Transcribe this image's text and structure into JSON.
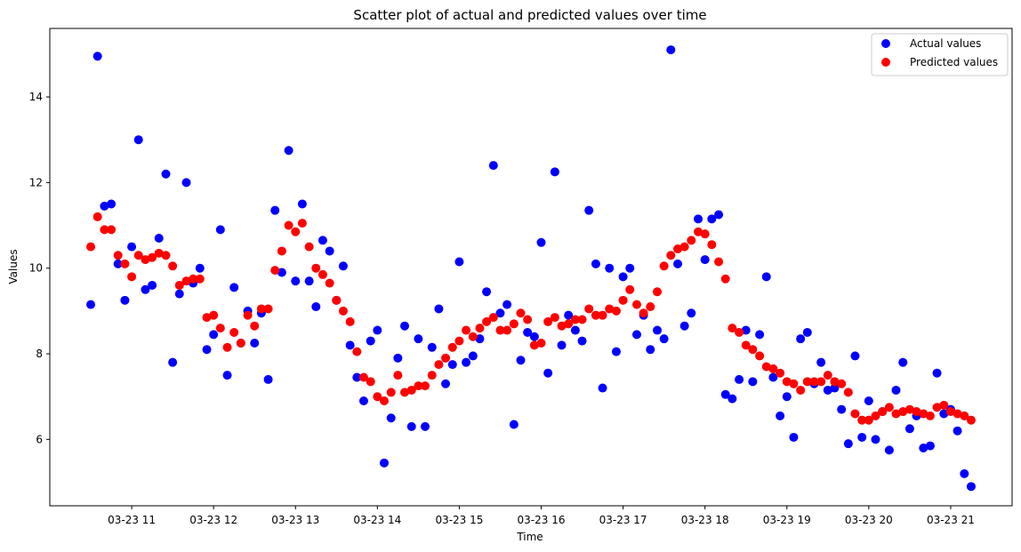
{
  "chart_data": {
    "type": "scatter",
    "title": "Scatter plot of actual and predicted values over time",
    "xlabel": "Time",
    "ylabel": "Values",
    "x_tick_labels": [
      "03-23 11",
      "03-23 12",
      "03-23 13",
      "03-23 14",
      "03-23 15",
      "03-23 16",
      "03-23 17",
      "03-23 18",
      "03-23 19",
      "03-23 20",
      "03-23 21"
    ],
    "x_tick_hours": [
      11,
      12,
      13,
      14,
      15,
      16,
      17,
      18,
      19,
      20,
      21
    ],
    "x_range_hours": [
      10.0,
      21.75
    ],
    "y_ticks": [
      6,
      8,
      10,
      12,
      14
    ],
    "ylim": [
      4.45,
      15.6
    ],
    "grid": false,
    "legend_position": "top-right",
    "series": [
      {
        "name": "Actual values",
        "color": "#0000ff",
        "x_hours": [
          10.5,
          10.583,
          10.667,
          10.75,
          10.833,
          10.917,
          11.0,
          11.083,
          11.167,
          11.25,
          11.333,
          11.417,
          11.5,
          11.583,
          11.667,
          11.75,
          11.833,
          11.917,
          12.0,
          12.083,
          12.167,
          12.25,
          12.333,
          12.417,
          12.5,
          12.583,
          12.667,
          12.75,
          12.833,
          12.917,
          13.0,
          13.083,
          13.167,
          13.25,
          13.333,
          13.417,
          13.5,
          13.583,
          13.667,
          13.75,
          13.833,
          13.917,
          14.0,
          14.083,
          14.167,
          14.25,
          14.333,
          14.417,
          14.5,
          14.583,
          14.667,
          14.75,
          14.833,
          14.917,
          15.0,
          15.083,
          15.167,
          15.25,
          15.333,
          15.417,
          15.5,
          15.583,
          15.667,
          15.75,
          15.833,
          15.917,
          16.0,
          16.083,
          16.167,
          16.25,
          16.333,
          16.417,
          16.5,
          16.583,
          16.667,
          16.75,
          16.833,
          16.917,
          17.0,
          17.083,
          17.167,
          17.25,
          17.333,
          17.417,
          17.5,
          17.583,
          17.667,
          17.75,
          17.833,
          17.917,
          18.0,
          18.083,
          18.167,
          18.25,
          18.333,
          18.417,
          18.5,
          18.583,
          18.667,
          18.75,
          18.833,
          18.917,
          19.0,
          19.083,
          19.167,
          19.25,
          19.333,
          19.417,
          19.5,
          19.583,
          19.667,
          19.75,
          19.833,
          19.917,
          20.0,
          20.083,
          20.167,
          20.25,
          20.333,
          20.417,
          20.5,
          20.583,
          20.667,
          20.75,
          20.833,
          20.917,
          21.0,
          21.083,
          21.167,
          21.25
        ],
        "values": [
          9.15,
          14.95,
          11.45,
          11.5,
          10.1,
          9.25,
          10.5,
          13.0,
          9.5,
          9.6,
          10.7,
          12.2,
          7.8,
          9.4,
          12.0,
          9.65,
          10.0,
          8.1,
          8.45,
          10.9,
          7.5,
          9.55,
          8.25,
          9.0,
          8.25,
          8.95,
          7.4,
          11.35,
          9.9,
          12.75,
          9.7,
          11.5,
          9.7,
          9.1,
          10.65,
          10.4,
          9.25,
          10.05,
          8.2,
          7.45,
          6.9,
          8.3,
          8.55,
          5.45,
          6.5,
          7.9,
          8.65,
          6.3,
          8.35,
          6.3,
          8.15,
          9.05,
          7.3,
          7.75,
          10.15,
          7.8,
          7.95,
          8.35,
          9.45,
          12.4,
          8.95,
          9.15,
          6.35,
          7.85,
          8.5,
          8.4,
          10.6,
          7.55,
          12.25,
          8.2,
          8.9,
          8.55,
          8.3,
          11.35,
          10.1,
          7.2,
          10.0,
          8.05,
          9.8,
          10.0,
          8.45,
          8.9,
          8.1,
          8.55,
          8.35,
          15.1,
          10.1,
          8.65,
          8.95,
          11.15,
          10.2,
          11.15,
          11.25,
          7.05,
          6.95,
          7.4,
          8.55,
          7.35,
          8.45,
          9.8,
          7.45,
          6.55,
          7.0,
          6.05,
          8.35,
          8.5,
          7.3,
          7.8,
          7.15,
          7.2,
          6.7,
          5.9,
          7.95,
          6.05,
          6.9,
          6.0,
          6.65,
          5.75,
          7.15,
          7.8,
          6.25,
          6.55,
          5.8,
          5.85,
          7.55,
          6.6,
          6.7,
          6.2,
          5.2,
          4.9
        ]
      },
      {
        "name": "Predicted values",
        "color": "#ff0000",
        "x_hours": [
          10.5,
          10.583,
          10.667,
          10.75,
          10.833,
          10.917,
          11.0,
          11.083,
          11.167,
          11.25,
          11.333,
          11.417,
          11.5,
          11.583,
          11.667,
          11.75,
          11.833,
          11.917,
          12.0,
          12.083,
          12.167,
          12.25,
          12.333,
          12.417,
          12.5,
          12.583,
          12.667,
          12.75,
          12.833,
          12.917,
          13.0,
          13.083,
          13.167,
          13.25,
          13.333,
          13.417,
          13.5,
          13.583,
          13.667,
          13.75,
          13.833,
          13.917,
          14.0,
          14.083,
          14.167,
          14.25,
          14.333,
          14.417,
          14.5,
          14.583,
          14.667,
          14.75,
          14.833,
          14.917,
          15.0,
          15.083,
          15.167,
          15.25,
          15.333,
          15.417,
          15.5,
          15.583,
          15.667,
          15.75,
          15.833,
          15.917,
          16.0,
          16.083,
          16.167,
          16.25,
          16.333,
          16.417,
          16.5,
          16.583,
          16.667,
          16.75,
          16.833,
          16.917,
          17.0,
          17.083,
          17.167,
          17.25,
          17.333,
          17.417,
          17.5,
          17.583,
          17.667,
          17.75,
          17.833,
          17.917,
          18.0,
          18.083,
          18.167,
          18.25,
          18.333,
          18.417,
          18.5,
          18.583,
          18.667,
          18.75,
          18.833,
          18.917,
          19.0,
          19.083,
          19.167,
          19.25,
          19.333,
          19.417,
          19.5,
          19.583,
          19.667,
          19.75,
          19.833,
          19.917,
          20.0,
          20.083,
          20.167,
          20.25,
          20.333,
          20.417,
          20.5,
          20.583,
          20.667,
          20.75,
          20.833,
          20.917,
          21.0,
          21.083,
          21.167,
          21.25
        ],
        "values": [
          10.5,
          11.2,
          10.9,
          10.9,
          10.3,
          10.1,
          9.8,
          10.3,
          10.2,
          10.25,
          10.35,
          10.3,
          10.05,
          9.6,
          9.7,
          9.75,
          9.75,
          8.85,
          8.9,
          8.6,
          8.15,
          8.5,
          8.25,
          8.9,
          8.65,
          9.05,
          9.05,
          9.95,
          10.4,
          11.0,
          10.85,
          11.05,
          10.5,
          10.0,
          9.85,
          9.65,
          9.25,
          9.0,
          8.75,
          8.05,
          7.45,
          7.35,
          7.0,
          6.9,
          7.1,
          7.5,
          7.1,
          7.15,
          7.25,
          7.25,
          7.5,
          7.75,
          7.9,
          8.15,
          8.3,
          8.55,
          8.4,
          8.6,
          8.75,
          8.85,
          8.55,
          8.55,
          8.7,
          8.95,
          8.8,
          8.2,
          8.25,
          8.75,
          8.85,
          8.65,
          8.7,
          8.8,
          8.8,
          9.05,
          8.9,
          8.9,
          9.05,
          9.0,
          9.25,
          9.5,
          9.15,
          8.95,
          9.1,
          9.45,
          10.05,
          10.3,
          10.45,
          10.5,
          10.65,
          10.85,
          10.8,
          10.55,
          10.15,
          9.75,
          8.6,
          8.5,
          8.2,
          8.1,
          7.95,
          7.7,
          7.65,
          7.55,
          7.35,
          7.3,
          7.15,
          7.35,
          7.35,
          7.35,
          7.5,
          7.35,
          7.3,
          7.1,
          6.6,
          6.45,
          6.45,
          6.55,
          6.65,
          6.75,
          6.6,
          6.65,
          6.7,
          6.65,
          6.6,
          6.55,
          6.75,
          6.8,
          6.65,
          6.6,
          6.55,
          6.45
        ]
      }
    ]
  }
}
